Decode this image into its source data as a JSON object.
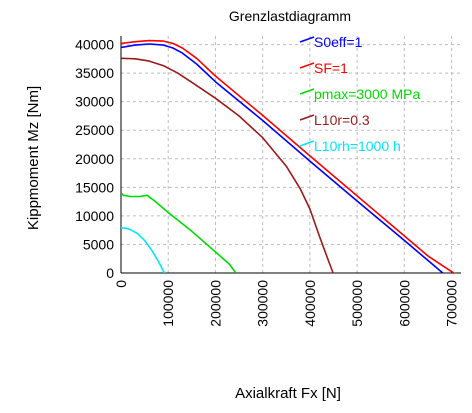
{
  "chart_data": {
    "type": "line",
    "title": "Grenzlastdiagramm",
    "xlabel": "Axialkraft Fx [N]",
    "ylabel": "Kippmoment Mz [Nm]",
    "xlim": [
      0,
      720000
    ],
    "ylim": [
      0,
      41500
    ],
    "x_ticks": [
      0,
      100000,
      200000,
      300000,
      400000,
      500000,
      600000,
      700000
    ],
    "y_ticks": [
      0,
      5000,
      10000,
      15000,
      20000,
      25000,
      30000,
      35000,
      40000
    ],
    "grid": true,
    "legend_position": "top-right",
    "series": [
      {
        "name": "S0eff=1",
        "color": "#0000ff",
        "x": [
          0,
          30000,
          60000,
          90000,
          110000,
          130000,
          160000,
          200000,
          300000,
          400000,
          500000,
          600000,
          650000,
          690000,
          702000
        ],
        "y": [
          39500,
          39900,
          40100,
          39900,
          39400,
          38500,
          36600,
          33500,
          26700,
          19600,
          12600,
          5700,
          2200,
          -600,
          -1000
        ]
      },
      {
        "name": "SF=1",
        "color": "#ff0000",
        "x": [
          0,
          30000,
          60000,
          90000,
          110000,
          130000,
          160000,
          200000,
          300000,
          400000,
          500000,
          600000,
          650000,
          690000,
          710000,
          718000
        ],
        "y": [
          40200,
          40500,
          40700,
          40600,
          40200,
          39400,
          37600,
          34500,
          27600,
          20500,
          13500,
          6500,
          3000,
          800,
          -300,
          -1000
        ]
      },
      {
        "name": "pmax=3000 MPa",
        "color": "#00dd00",
        "x": [
          0,
          5000,
          20000,
          40000,
          55000,
          70000,
          100000,
          150000,
          200000,
          230000,
          243000
        ],
        "y": [
          14000,
          13600,
          13400,
          13400,
          13600,
          12700,
          10600,
          7300,
          3700,
          1500,
          0
        ]
      },
      {
        "name": "L10r=0.3",
        "color": "#9b1b1b",
        "x": [
          0,
          30000,
          60000,
          90000,
          120000,
          150000,
          200000,
          250000,
          300000,
          350000,
          380000,
          400000,
          420000,
          440000,
          450000,
          460000
        ],
        "y": [
          37600,
          37500,
          37100,
          36300,
          35000,
          33400,
          30600,
          27500,
          23700,
          18700,
          14700,
          11200,
          6500,
          2000,
          -200,
          -1000
        ]
      },
      {
        "name": "L10rh=1000 h",
        "color": "#00e5ff",
        "x": [
          0,
          10000,
          20000,
          35000,
          50000,
          65000,
          80000,
          90000,
          96000
        ],
        "y": [
          7900,
          7850,
          7600,
          6900,
          5700,
          4000,
          1900,
          300,
          -700
        ]
      }
    ]
  }
}
